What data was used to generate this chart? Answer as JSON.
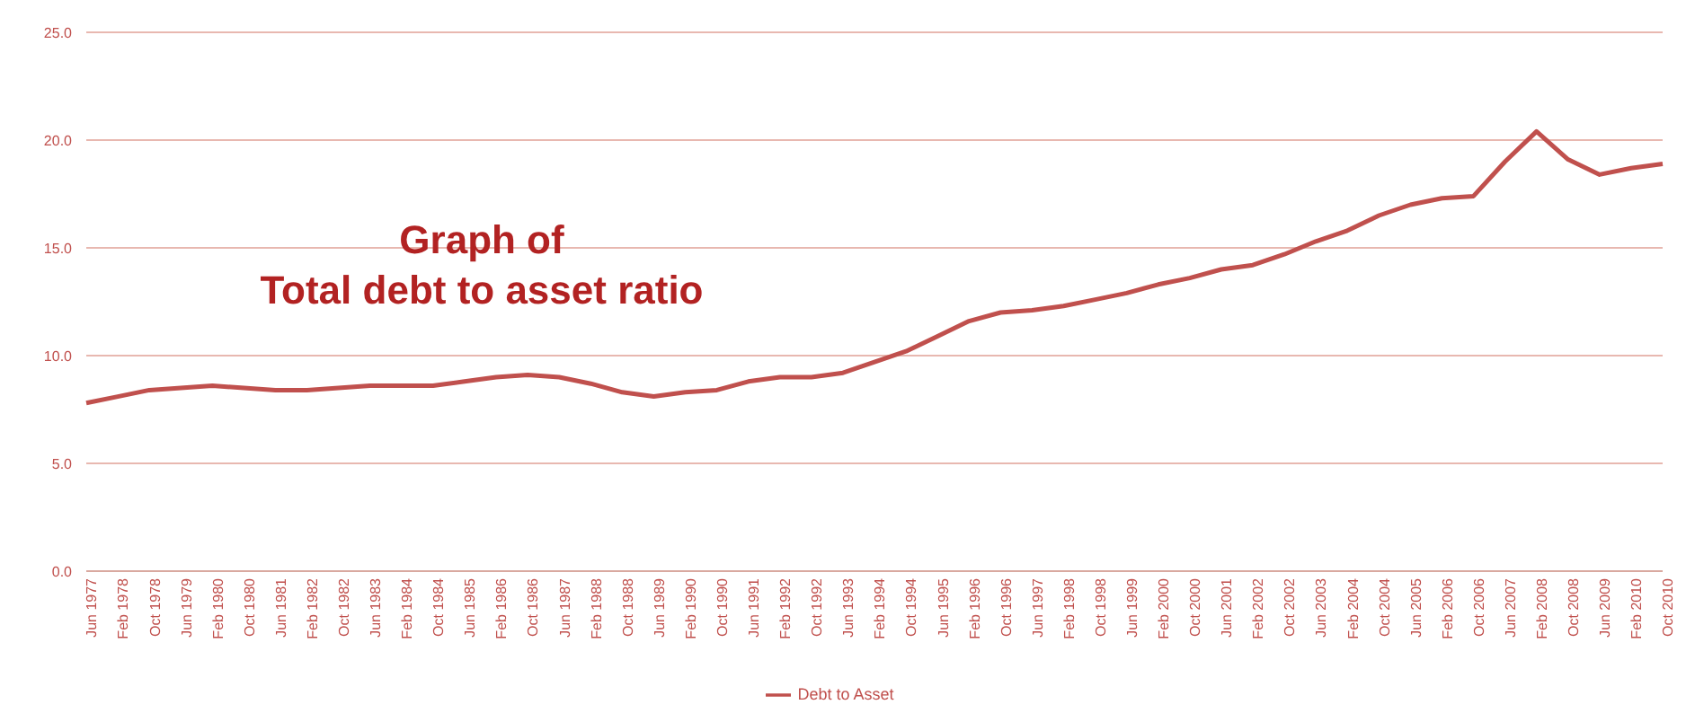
{
  "chart_data": {
    "type": "line",
    "title": "Graph of\nTotal debt to asset ratio",
    "categories": [
      "Jun 1977",
      "Feb 1978",
      "Oct 1978",
      "Jun 1979",
      "Feb 1980",
      "Oct 1980",
      "Jun 1981",
      "Feb 1982",
      "Oct 1982",
      "Jun 1983",
      "Feb 1984",
      "Oct 1984",
      "Jun 1985",
      "Feb 1986",
      "Oct 1986",
      "Jun 1987",
      "Feb 1988",
      "Oct 1988",
      "Jun 1989",
      "Feb 1990",
      "Oct 1990",
      "Jun 1991",
      "Feb 1992",
      "Oct 1992",
      "Jun 1993",
      "Feb 1994",
      "Oct 1994",
      "Jun 1995",
      "Feb 1996",
      "Oct 1996",
      "Jun 1997",
      "Feb 1998",
      "Oct 1998",
      "Jun 1999",
      "Feb 2000",
      "Oct 2000",
      "Jun 2001",
      "Feb 2002",
      "Oct 2002",
      "Jun 2003",
      "Feb 2004",
      "Oct 2004",
      "Jun 2005",
      "Feb 2006",
      "Oct 2006",
      "Jun 2007",
      "Feb 2008",
      "Oct 2008",
      "Jun 2009",
      "Feb 2010",
      "Oct 2010"
    ],
    "series": [
      {
        "name": "Debt to Asset",
        "color": "#c0504d",
        "values": [
          7.8,
          8.1,
          8.4,
          8.5,
          8.6,
          8.5,
          8.4,
          8.4,
          8.5,
          8.6,
          8.6,
          8.6,
          8.8,
          9.0,
          9.1,
          9.0,
          8.7,
          8.3,
          8.1,
          8.3,
          8.4,
          8.8,
          9.0,
          9.0,
          9.2,
          9.7,
          10.2,
          10.9,
          11.6,
          12.0,
          12.1,
          12.3,
          12.6,
          12.9,
          13.3,
          13.6,
          14.0,
          14.2,
          14.7,
          15.3,
          15.8,
          16.5,
          17.0,
          17.3,
          17.4,
          19.0,
          20.4,
          19.1,
          18.4,
          18.7,
          18.9
        ]
      }
    ],
    "ylim": [
      0,
      25
    ],
    "yticks": [
      {
        "value": 0,
        "label": "0.0"
      },
      {
        "value": 5,
        "label": "5.0"
      },
      {
        "value": 10,
        "label": "10.0"
      },
      {
        "value": 15,
        "label": "15.0"
      },
      {
        "value": 20,
        "label": "20.0"
      },
      {
        "value": 25,
        "label": "25.0"
      }
    ],
    "grid": "y",
    "legend": "bottom",
    "marker": "none",
    "line_style": "solid"
  }
}
